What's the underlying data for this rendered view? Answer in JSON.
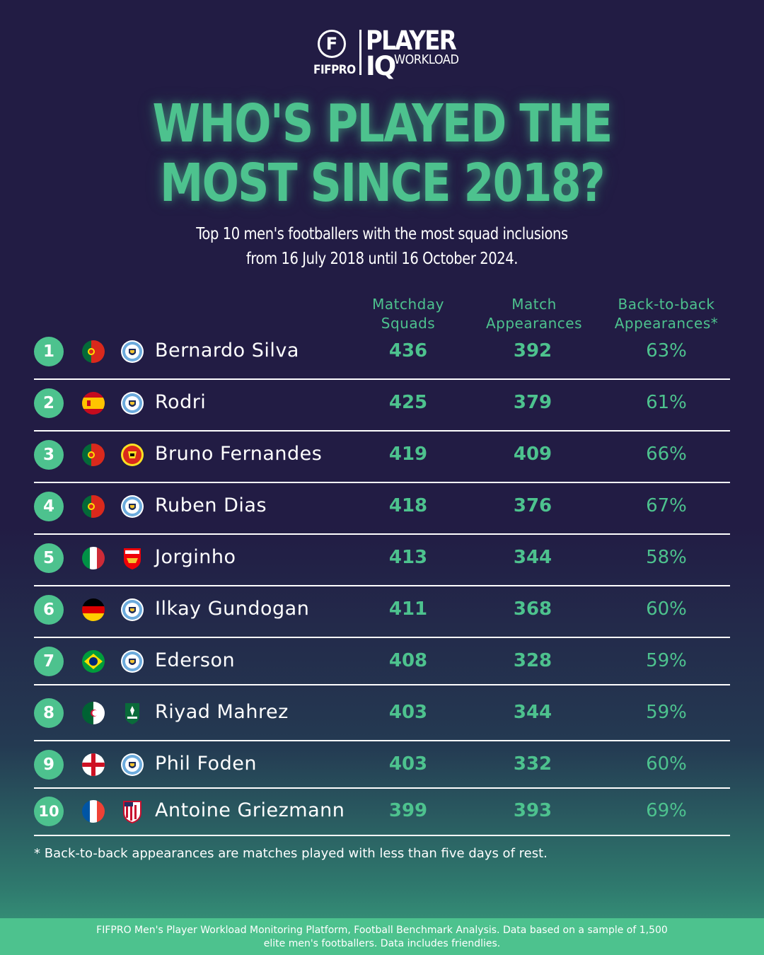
{
  "brand": {
    "fifpro_mark": "F",
    "fifpro": "FIFPRO",
    "player": "PLAYER",
    "iq": "IQ",
    "workload": "WORKLOAD"
  },
  "title": {
    "line1": "WHO'S PLAYED THE",
    "line2": "MOST SINCE 2018?"
  },
  "subtitle": {
    "line1": "Top 10 men's footballers with the most squad inclusions",
    "line2": "from 16 July 2018 until 16 October 2024."
  },
  "columns": {
    "squads": [
      "Matchday",
      "Squads"
    ],
    "appearances": [
      "Match",
      "Appearances"
    ],
    "b2b": [
      "Back-to-back",
      "Appearances*"
    ]
  },
  "players": [
    {
      "rank": "1",
      "name": "Bernardo Silva",
      "flag": "portugal",
      "club_icon": "man-city-crest-icon",
      "squads": "436",
      "appearances": "392",
      "b2b": "63%"
    },
    {
      "rank": "2",
      "name": "Rodri",
      "flag": "spain",
      "club_icon": "man-city-crest-icon",
      "squads": "425",
      "appearances": "379",
      "b2b": "61%"
    },
    {
      "rank": "3",
      "name": "Bruno Fernandes",
      "flag": "portugal",
      "club_icon": "man-united-crest-icon",
      "squads": "419",
      "appearances": "409",
      "b2b": "66%"
    },
    {
      "rank": "4",
      "name": "Ruben Dias",
      "flag": "portugal",
      "club_icon": "man-city-crest-icon",
      "squads": "418",
      "appearances": "376",
      "b2b": "67%"
    },
    {
      "rank": "5",
      "name": "Jorginho",
      "flag": "italy",
      "club_icon": "arsenal-crest-icon",
      "squads": "413",
      "appearances": "344",
      "b2b": "58%"
    },
    {
      "rank": "6",
      "name": "Ilkay Gundogan",
      "flag": "germany",
      "club_icon": "man-city-crest-icon",
      "squads": "411",
      "appearances": "368",
      "b2b": "60%"
    },
    {
      "rank": "7",
      "name": "Ederson",
      "flag": "brazil",
      "club_icon": "man-city-crest-icon",
      "squads": "408",
      "appearances": "328",
      "b2b": "59%"
    },
    {
      "rank": "8",
      "name": "Riyad Mahrez",
      "flag": "algeria",
      "club_icon": "al-ahli-crest-icon",
      "squads": "403",
      "appearances": "344",
      "b2b": "59%"
    },
    {
      "rank": "9",
      "name": "Phil Foden",
      "flag": "england",
      "club_icon": "man-city-crest-icon",
      "squads": "403",
      "appearances": "332",
      "b2b": "60%"
    },
    {
      "rank": "10",
      "name": "Antoine Griezmann",
      "flag": "france",
      "club_icon": "atletico-crest-icon",
      "squads": "399",
      "appearances": "393",
      "b2b": "69%"
    }
  ],
  "footnote": "* Back-to-back appearances are matches played with less than five days of rest.",
  "source": {
    "line1": "FIFPRO Men's Player Workload Monitoring Platform, Football Benchmark Analysis. Data based on a sample of 1,500",
    "line2": "elite men's footballers. Data includes friendlies."
  },
  "colors": {
    "background": "#221c44",
    "accent": "#4dc28e",
    "text": "#ffffff"
  }
}
